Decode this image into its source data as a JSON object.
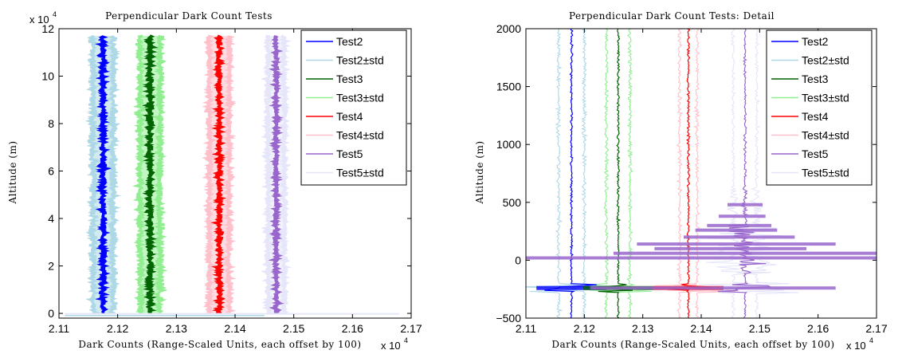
{
  "chart_data": [
    {
      "type": "line",
      "title": "Perpendicular Dark Count Tests",
      "xlabel": "Dark Counts (Range-Scaled Units, each offset by 100)",
      "ylabel": "Altitude (m)",
      "xlim": [
        2.11,
        2.17
      ],
      "ylim": [
        -2000,
        120000
      ],
      "x_multiplier": "x 10^4",
      "y_multiplier": "x 10^4",
      "xticks": [
        "2.11",
        "2.12",
        "2.13",
        "2.14",
        "2.15",
        "2.16",
        "2.17"
      ],
      "yticks": [
        "0",
        "2",
        "4",
        "6",
        "8",
        "10",
        "12"
      ],
      "legend_position": "top-right",
      "legend": [
        "Test2",
        "Test2±std",
        "Test3",
        "Test3±std",
        "Test4",
        "Test4±std",
        "Test5",
        "Test5±std"
      ],
      "series": [
        {
          "name": "Test2",
          "color": "#0000ff",
          "center": 2.1175,
          "spread": 0.0006,
          "std_offset": 0.0017
        },
        {
          "name": "Test3",
          "color": "#006400",
          "center": 2.1255,
          "spread": 0.0006,
          "std_offset": 0.0017
        },
        {
          "name": "Test4",
          "color": "#ff0000",
          "center": 2.1373,
          "spread": 0.0005,
          "std_offset": 0.0017
        },
        {
          "name": "Test5",
          "color": "#9966cc",
          "center": 2.147,
          "spread": 0.0005,
          "std_offset": 0.0014
        }
      ]
    },
    {
      "type": "line",
      "title": "Perpendicular Dark Count Tests: Detail",
      "xlabel": "Dark Counts (Range-Scaled Units, each offset by 100)",
      "ylabel": "Altitude (m)",
      "xlim": [
        2.11,
        2.17
      ],
      "ylim": [
        -500,
        2000
      ],
      "x_multiplier": "x 10^4",
      "xticks": [
        "2.11",
        "2.12",
        "2.13",
        "2.14",
        "2.15",
        "2.16",
        "2.17"
      ],
      "yticks": [
        "−500",
        "0",
        "500",
        "1000",
        "1500",
        "2000"
      ],
      "legend_position": "top-right",
      "legend": [
        "Test2",
        "Test2±std",
        "Test3",
        "Test3±std",
        "Test4",
        "Test4±std",
        "Test5",
        "Test5±std"
      ],
      "series": [
        {
          "name": "Test2",
          "color": "#0000ff",
          "center": 2.1178,
          "spread": 0.0003,
          "std_offset": 0.0022
        },
        {
          "name": "Test3",
          "color": "#006400",
          "center": 2.1258,
          "spread": 0.0003,
          "std_offset": 0.002
        },
        {
          "name": "Test4",
          "color": "#ff0000",
          "center": 2.1378,
          "spread": 0.0003,
          "std_offset": 0.0015
        },
        {
          "name": "Test5",
          "color": "#9966cc",
          "center": 2.1475,
          "spread": 0.0003,
          "std_offset": 0.002
        }
      ],
      "surface_spike_region": [
        -300,
        300
      ]
    }
  ],
  "colors": {
    "Test2": "#0000ff",
    "Test2_std": "#add8e6",
    "Test3": "#006400",
    "Test3_std": "#90ee90",
    "Test4": "#ff0000",
    "Test4_std": "#ffc0cb",
    "Test5": "#9966cc",
    "Test5_std": "#e6e6fa"
  }
}
